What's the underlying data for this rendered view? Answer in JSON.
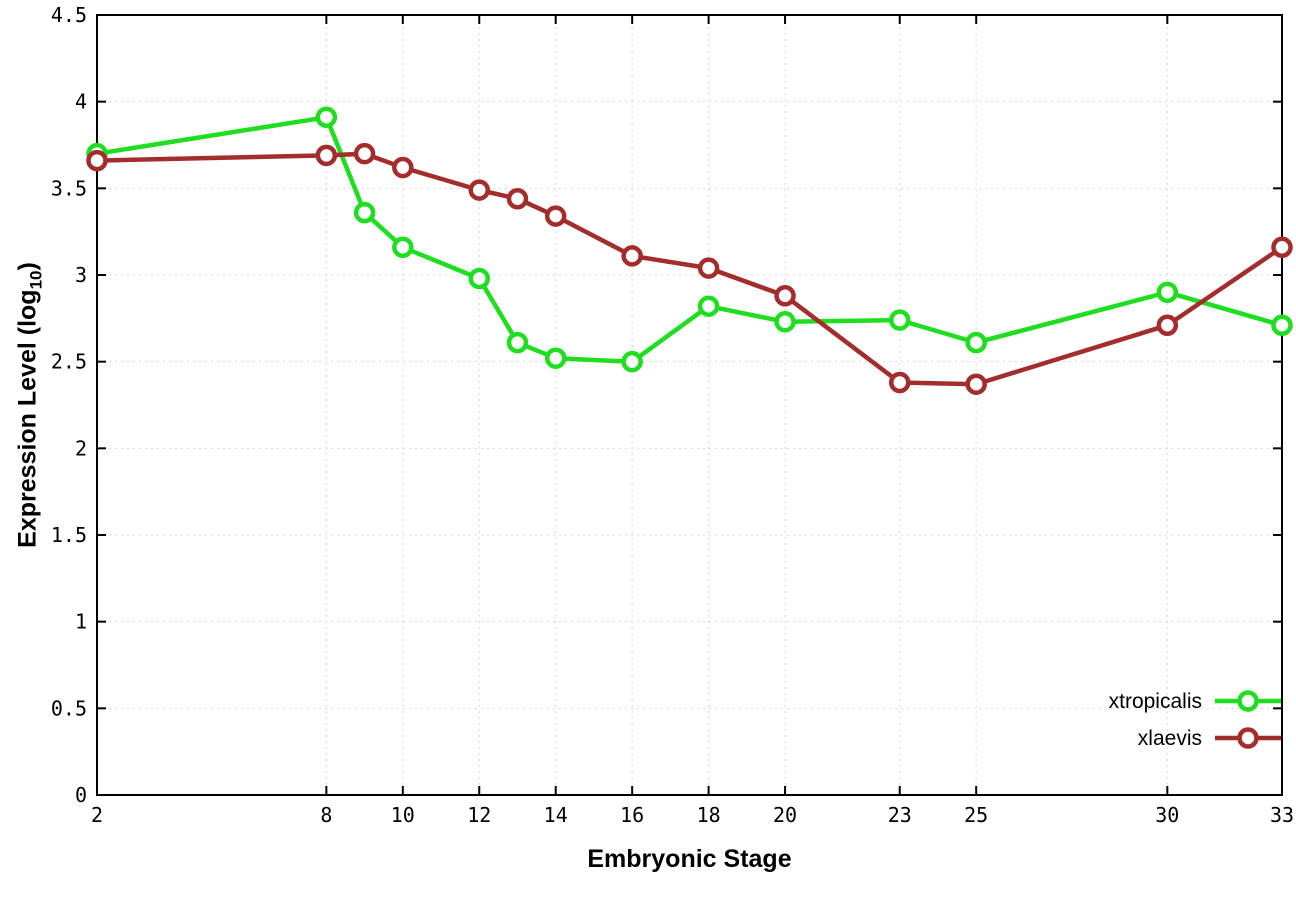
{
  "chart_data": {
    "type": "line",
    "title": "",
    "xlabel": "Embryonic Stage",
    "ylabel": "Expression Level (log10)",
    "ylabel_parts": {
      "main": "Expression Level (log",
      "sub": "10",
      "end": ")"
    },
    "xlim": [
      2,
      33
    ],
    "ylim": [
      0,
      4.5
    ],
    "x_ticks": [
      2,
      8,
      10,
      12,
      14,
      16,
      18,
      20,
      23,
      25,
      30,
      33
    ],
    "y_ticks": [
      0,
      0.5,
      1,
      1.5,
      2,
      2.5,
      3,
      3.5,
      4,
      4.5
    ],
    "y_tick_labels": [
      "0",
      "0.5",
      "1",
      "1.5",
      "2",
      "2.5",
      "3",
      "3.5",
      "4",
      "4.5"
    ],
    "grid": true,
    "legend_position": "bottom-right",
    "x": [
      2,
      8,
      9,
      10,
      12,
      13,
      14,
      16,
      18,
      20,
      23,
      25,
      30,
      33
    ],
    "series": [
      {
        "name": "xtropicalis",
        "color": "#1fdd1f",
        "values": [
          3.7,
          3.91,
          3.36,
          3.16,
          2.98,
          2.61,
          2.52,
          2.5,
          2.82,
          2.73,
          2.74,
          2.61,
          2.9,
          2.71
        ]
      },
      {
        "name": "xlaevis",
        "color": "#a32c2c",
        "values": [
          3.66,
          3.69,
          3.7,
          3.62,
          3.49,
          3.44,
          3.34,
          3.11,
          3.04,
          2.88,
          2.38,
          2.37,
          2.71,
          3.16
        ]
      }
    ],
    "colors": {
      "border": "#000000",
      "grid": "#d4d4d4",
      "background": "#ffffff",
      "marker_fill": "#ffffff"
    }
  }
}
